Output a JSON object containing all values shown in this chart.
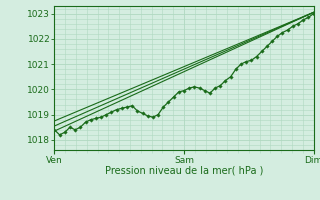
{
  "bg_color": "#d4ede0",
  "grid_color": "#b0d8c0",
  "line_color": "#1a6b1a",
  "marker_color": "#1a6b1a",
  "title": "Pression niveau de la mer( hPa )",
  "x_ticks_labels": [
    "Ven",
    "Sam",
    "Dim"
  ],
  "x_ticks_pos": [
    0.0,
    0.5,
    1.0
  ],
  "ylim": [
    1017.6,
    1023.3
  ],
  "yticks": [
    1018,
    1019,
    1020,
    1021,
    1022,
    1023
  ],
  "line1_x": [
    0.0,
    0.02,
    0.04,
    0.06,
    0.08,
    0.1,
    0.12,
    0.14,
    0.16,
    0.18,
    0.2,
    0.22,
    0.24,
    0.26,
    0.28,
    0.3,
    0.32,
    0.34,
    0.36,
    0.38,
    0.4,
    0.42,
    0.44,
    0.46,
    0.48,
    0.5,
    0.52,
    0.54,
    0.56,
    0.58,
    0.6,
    0.62,
    0.64,
    0.66,
    0.68,
    0.7,
    0.72,
    0.74,
    0.76,
    0.78,
    0.8,
    0.82,
    0.84,
    0.86,
    0.88,
    0.9,
    0.92,
    0.94,
    0.96,
    0.98,
    1.0
  ],
  "line1_y": [
    1018.4,
    1018.2,
    1018.3,
    1018.5,
    1018.4,
    1018.5,
    1018.7,
    1018.8,
    1018.85,
    1018.9,
    1019.0,
    1019.1,
    1019.2,
    1019.25,
    1019.3,
    1019.35,
    1019.15,
    1019.05,
    1018.95,
    1018.9,
    1019.0,
    1019.3,
    1019.5,
    1019.7,
    1019.9,
    1019.95,
    1020.05,
    1020.1,
    1020.05,
    1019.95,
    1019.85,
    1020.05,
    1020.15,
    1020.35,
    1020.5,
    1020.8,
    1021.0,
    1021.1,
    1021.15,
    1021.3,
    1021.5,
    1021.7,
    1021.9,
    1022.1,
    1022.25,
    1022.35,
    1022.5,
    1022.6,
    1022.75,
    1022.85,
    1023.0
  ],
  "line2_x": [
    0.0,
    1.0
  ],
  "line2_y": [
    1018.35,
    1023.05
  ],
  "line3_x": [
    0.0,
    1.0
  ],
  "line3_y": [
    1018.55,
    1023.05
  ],
  "line4_x": [
    0.0,
    1.0
  ],
  "line4_y": [
    1018.75,
    1023.05
  ]
}
